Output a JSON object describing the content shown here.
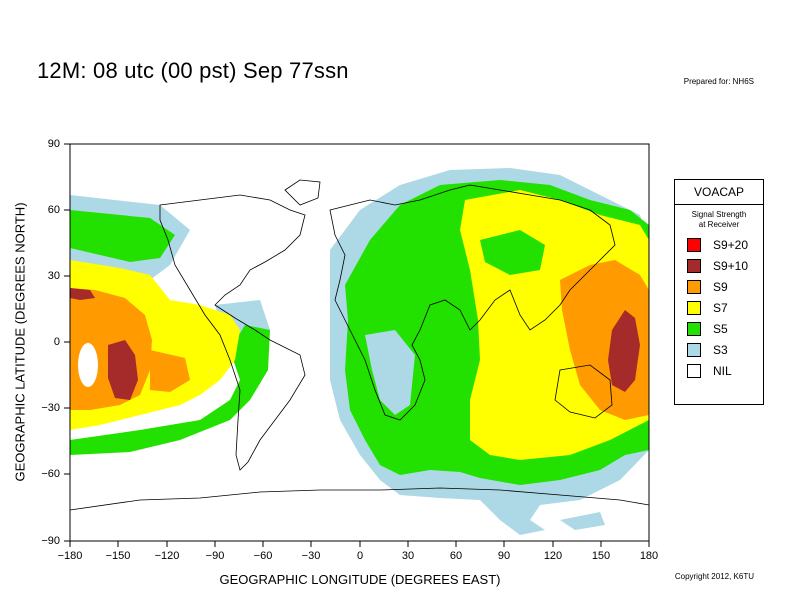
{
  "title": "12M:  08 utc (00 pst) Sep 77ssn",
  "prepared": "Prepared for: NH6S",
  "copyright": "Copyright 2012, K6TU",
  "x_axis": {
    "label": "GEOGRAPHIC LONGITUDE (DEGREES EAST)",
    "ticks": [
      "−180",
      "−150",
      "−120",
      "−90",
      "−60",
      "−30",
      "0",
      "30",
      "60",
      "90",
      "120",
      "150",
      "180"
    ],
    "range": [
      -180,
      180
    ]
  },
  "y_axis": {
    "label": "GEOGRAPHIC LATITUDE (DEGREES NORTH)",
    "ticks": [
      "90",
      "60",
      "30",
      "0",
      "−30",
      "−60",
      "−90"
    ],
    "range": [
      -90,
      90
    ]
  },
  "legend": {
    "title": "VOACAP",
    "subtitle_line1": "Signal Strength",
    "subtitle_line2": "at Receiver",
    "items": [
      {
        "label": "S9+20",
        "color": "#ff0000"
      },
      {
        "label": "S9+10",
        "color": "#a52a2a"
      },
      {
        "label": "S9",
        "color": "#ff9a00"
      },
      {
        "label": "S7",
        "color": "#ffff00"
      },
      {
        "label": "S5",
        "color": "#22e000"
      },
      {
        "label": "S3",
        "color": "#add8e6"
      },
      {
        "label": "NIL",
        "color": "#ffffff"
      }
    ]
  },
  "colors": {
    "s9p10": "#a52a2a",
    "s9": "#ff9a00",
    "s7": "#ffff00",
    "s5": "#22e000",
    "s3": "#add8e6"
  }
}
